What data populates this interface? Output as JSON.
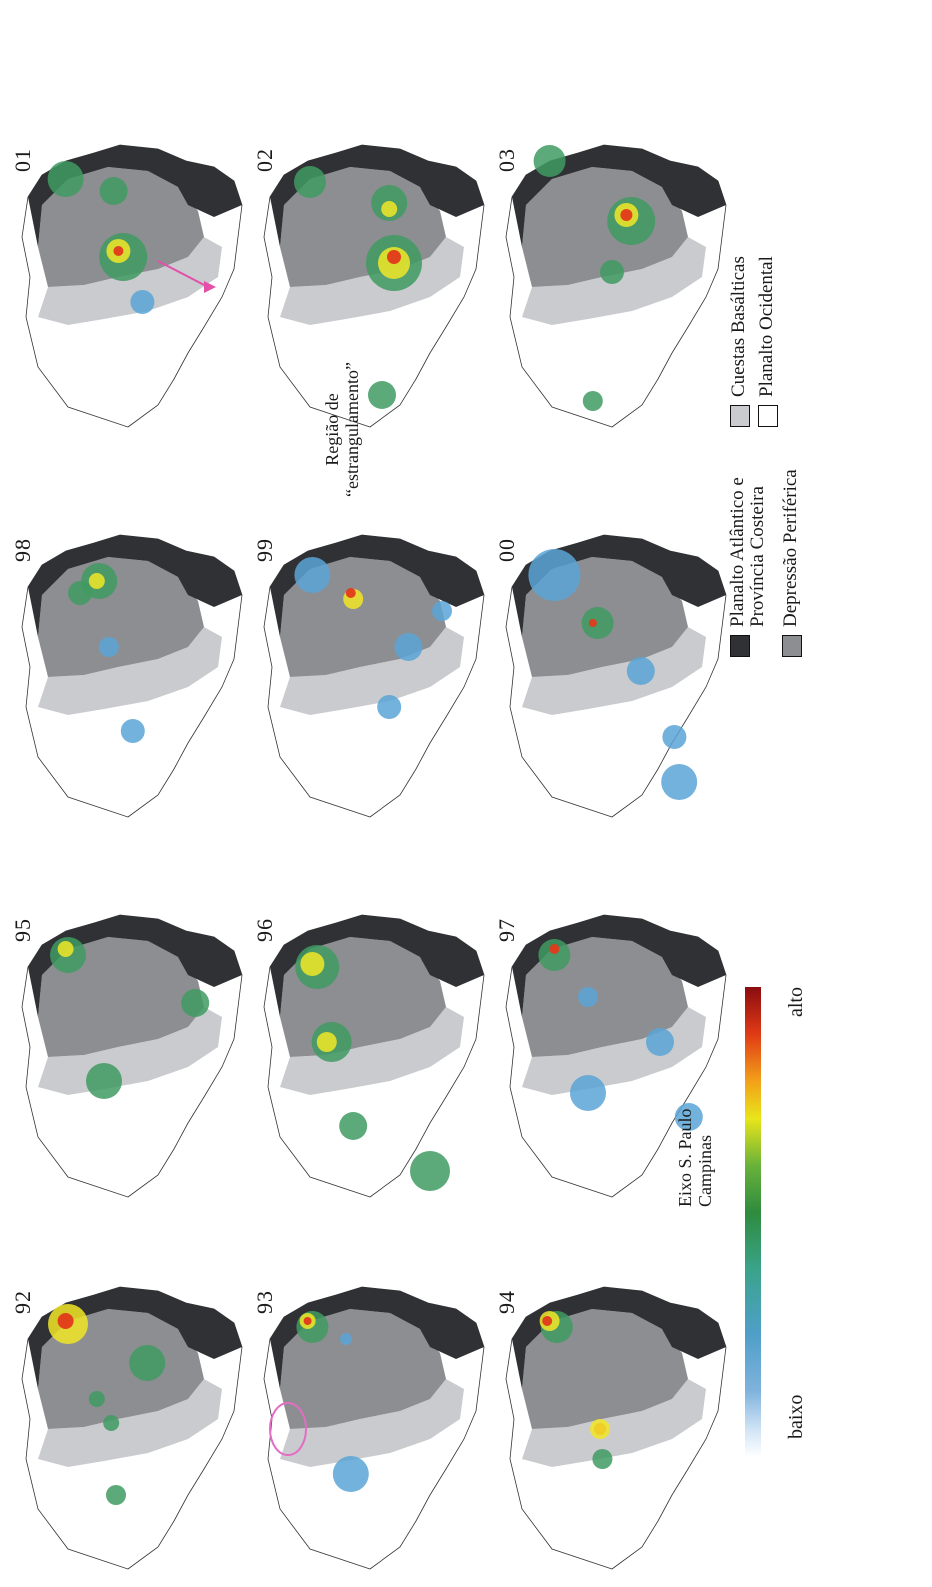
{
  "colors": {
    "planalto_atlantico": "#2f3135",
    "depressao_periferica": "#8d8e92",
    "cuestas_basalticas": "#c9cbce",
    "planalto_ocidental": "#ffffff",
    "outline": "#333333",
    "highlight_ellipse": "#e46cc4",
    "arrow": "#e34fa9"
  },
  "panels": [
    {
      "year": "92",
      "hotspots": [
        [
          "green",
          0.72,
          0.58,
          18
        ],
        [
          "yellow",
          0.85,
          0.25,
          20
        ],
        [
          "red",
          0.86,
          0.24,
          8
        ],
        [
          "green",
          0.28,
          0.45,
          10
        ],
        [
          "green",
          0.52,
          0.43,
          8
        ],
        [
          "green",
          0.6,
          0.37,
          8
        ]
      ]
    },
    {
      "year": "93",
      "hotspots": [
        [
          "blue",
          0.35,
          0.42,
          18
        ],
        [
          "green",
          0.84,
          0.26,
          16
        ],
        [
          "yellow",
          0.86,
          0.24,
          8
        ],
        [
          "red",
          0.86,
          0.24,
          4
        ],
        [
          "blue",
          0.8,
          0.4,
          6
        ]
      ]
    },
    {
      "year": "94",
      "hotspots": [
        [
          "green",
          0.84,
          0.27,
          16
        ],
        [
          "yellow",
          0.86,
          0.24,
          10
        ],
        [
          "red",
          0.86,
          0.23,
          5
        ],
        [
          "red",
          0.5,
          0.45,
          6
        ],
        [
          "yellow",
          0.5,
          0.45,
          10
        ],
        [
          "green",
          0.4,
          0.46,
          10
        ]
      ]
    },
    {
      "year": "95",
      "hotspots": [
        [
          "green",
          0.84,
          0.25,
          18
        ],
        [
          "yellow",
          0.86,
          0.24,
          8
        ],
        [
          "green",
          0.42,
          0.4,
          18
        ],
        [
          "green",
          0.68,
          0.78,
          14
        ]
      ]
    },
    {
      "year": "96",
      "hotspots": [
        [
          "green",
          0.8,
          0.28,
          22
        ],
        [
          "yellow",
          0.81,
          0.26,
          12
        ],
        [
          "green",
          0.55,
          0.34,
          20
        ],
        [
          "yellow",
          0.55,
          0.32,
          10
        ],
        [
          "green",
          0.27,
          0.43,
          14
        ],
        [
          "green",
          0.12,
          0.75,
          20
        ]
      ]
    },
    {
      "year": "97",
      "hotspots": [
        [
          "blue",
          0.38,
          0.4,
          18
        ],
        [
          "green",
          0.84,
          0.26,
          16
        ],
        [
          "red",
          0.86,
          0.26,
          5
        ],
        [
          "blue",
          0.55,
          0.7,
          14
        ],
        [
          "blue",
          0.3,
          0.82,
          14
        ],
        [
          "blue",
          0.7,
          0.4,
          10
        ]
      ]
    },
    {
      "year": "98",
      "hotspots": [
        [
          "green",
          0.82,
          0.38,
          18
        ],
        [
          "yellow",
          0.82,
          0.37,
          8
        ],
        [
          "blue",
          0.6,
          0.42,
          10
        ],
        [
          "blue",
          0.32,
          0.52,
          12
        ],
        [
          "green",
          0.78,
          0.3,
          12
        ]
      ]
    },
    {
      "year": "99",
      "hotspots": [
        [
          "blue",
          0.84,
          0.26,
          18
        ],
        [
          "yellow",
          0.76,
          0.43,
          10
        ],
        [
          "red",
          0.78,
          0.42,
          5
        ],
        [
          "blue",
          0.6,
          0.66,
          14
        ],
        [
          "blue",
          0.4,
          0.58,
          12
        ],
        [
          "blue",
          0.72,
          0.8,
          10
        ]
      ]
    },
    {
      "year": "00",
      "hotspots": [
        [
          "blue",
          0.84,
          0.26,
          26
        ],
        [
          "blue",
          0.52,
          0.62,
          14
        ],
        [
          "green",
          0.68,
          0.44,
          16
        ],
        [
          "red",
          0.68,
          0.42,
          4
        ],
        [
          "blue",
          0.15,
          0.78,
          18
        ],
        [
          "blue",
          0.3,
          0.76,
          12
        ]
      ]
    },
    {
      "year": "01",
      "hotspots": [
        [
          "green",
          0.6,
          0.48,
          24
        ],
        [
          "yellow",
          0.62,
          0.46,
          12
        ],
        [
          "red",
          0.62,
          0.46,
          5
        ],
        [
          "green",
          0.82,
          0.44,
          14
        ],
        [
          "green",
          0.86,
          0.24,
          18
        ],
        [
          "blue",
          0.45,
          0.56,
          12
        ]
      ]
    },
    {
      "year": "02",
      "hotspots": [
        [
          "green",
          0.58,
          0.6,
          28
        ],
        [
          "yellow",
          0.58,
          0.6,
          16
        ],
        [
          "red",
          0.6,
          0.6,
          7
        ],
        [
          "green",
          0.78,
          0.58,
          18
        ],
        [
          "yellow",
          0.76,
          0.58,
          8
        ],
        [
          "green",
          0.85,
          0.25,
          16
        ],
        [
          "green",
          0.14,
          0.55,
          14
        ]
      ]
    },
    {
      "year": "03",
      "hotspots": [
        [
          "green",
          0.72,
          0.58,
          24
        ],
        [
          "yellow",
          0.74,
          0.56,
          12
        ],
        [
          "red",
          0.74,
          0.56,
          6
        ],
        [
          "green",
          0.55,
          0.5,
          12
        ],
        [
          "green",
          0.92,
          0.24,
          16
        ],
        [
          "green",
          0.12,
          0.42,
          10
        ]
      ]
    }
  ],
  "annotations": {
    "region_line1": "Região de",
    "region_line2": "“estrangulamento”",
    "axis_line1": "Eixo S. Paulo",
    "axis_line2": "Campinas"
  },
  "colorbar": {
    "low_label": "baixo",
    "high_label": "alto"
  },
  "legend": [
    {
      "color_key": "planalto_atlantico",
      "line1": "Planalto Atlântico e",
      "line2": "Província Costeira"
    },
    {
      "color_key": "depressao_periferica",
      "line1": "Depressão Periférica",
      "line2": ""
    },
    {
      "color_key": "cuestas_basalticas",
      "line1": "Cuestas Basálticas",
      "line2": ""
    },
    {
      "color_key": "planalto_ocidental",
      "line1": "Planalto Ocidental",
      "line2": ""
    }
  ]
}
